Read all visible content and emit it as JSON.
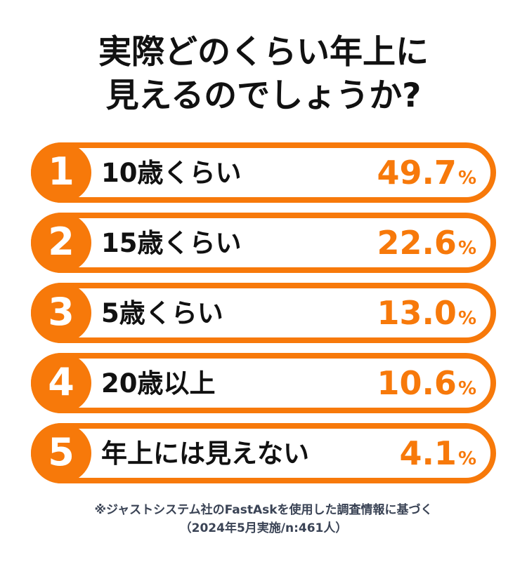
{
  "title": {
    "line1": "実際どのくらい年上に",
    "line2": "見えるのでしょうか?"
  },
  "rows": [
    {
      "rank": "1",
      "label": "10歳くらい",
      "value": "49.7",
      "unit": "%"
    },
    {
      "rank": "2",
      "label": "15歳くらい",
      "value": "22.6",
      "unit": "%"
    },
    {
      "rank": "3",
      "label": "5歳くらい",
      "value": "13.0",
      "unit": "%"
    },
    {
      "rank": "4",
      "label": "20歳以上",
      "value": "10.6",
      "unit": "%"
    },
    {
      "rank": "5",
      "label": "年上には見えない",
      "value": "4.1",
      "unit": "%"
    }
  ],
  "footer": {
    "line1": "※ジャストシステム社のFastAskを使用した調査情報に基づく",
    "line2": "（2024年5月実施/n:461人）"
  },
  "colors": {
    "accent": "#F7790A",
    "title_text": "#111111",
    "footer_text": "#3A4355"
  },
  "chart_data": {
    "type": "table",
    "title": "実際どのくらい年上に見えるのでしょうか?",
    "columns": [
      "rank",
      "answer",
      "percent"
    ],
    "categories": [
      "10歳くらい",
      "15歳くらい",
      "5歳くらい",
      "20歳以上",
      "年上には見えない"
    ],
    "values": [
      49.7,
      22.6,
      13.0,
      10.6,
      4.1
    ],
    "unit": "%",
    "note": "※ジャストシステム社のFastAskを使用した調査情報に基づく（2024年5月実施/n:461人）",
    "legend_position": "none",
    "grid": false
  }
}
